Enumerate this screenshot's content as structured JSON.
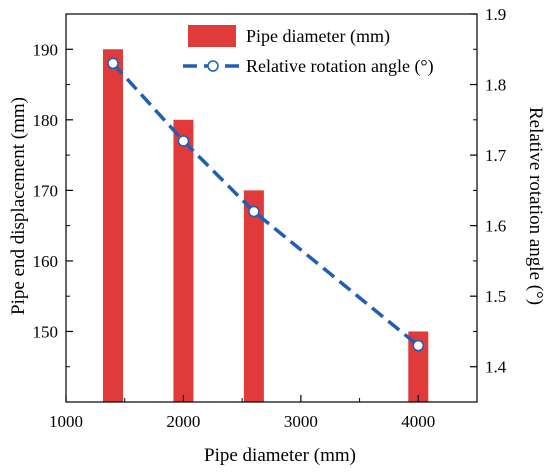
{
  "chart_data": {
    "type": "bar",
    "xlabel": "Pipe diameter (mm)",
    "ylabel_left": "Pipe end displacement (mm)",
    "ylabel_right": "Relative rotation angle (°)",
    "xlim": [
      1000,
      4500
    ],
    "ylim_left": [
      140,
      195
    ],
    "ylim_right": [
      1.35,
      1.9
    ],
    "xticks": [
      1000,
      2000,
      3000,
      4000
    ],
    "yticks_left": [
      150,
      160,
      170,
      180,
      190
    ],
    "yticks_right": [
      "1.4",
      "1.5",
      "1.6",
      "1.7",
      "1.8",
      "1.9"
    ],
    "legend_position": "top-right",
    "series": [
      {
        "name": "Pipe diameter (mm)",
        "type": "bar",
        "axis": "left",
        "color": "#e03a3a",
        "x": [
          1400,
          2000,
          2600,
          4000
        ],
        "values": [
          190,
          180,
          170,
          150
        ]
      },
      {
        "name": "Relative rotation angle (°)",
        "type": "line",
        "axis": "right",
        "color": "#1f5fb4",
        "marker_fill": "#ffffff",
        "x": [
          1400,
          2000,
          2600,
          4000
        ],
        "values": [
          1.83,
          1.72,
          1.62,
          1.43
        ]
      }
    ]
  }
}
